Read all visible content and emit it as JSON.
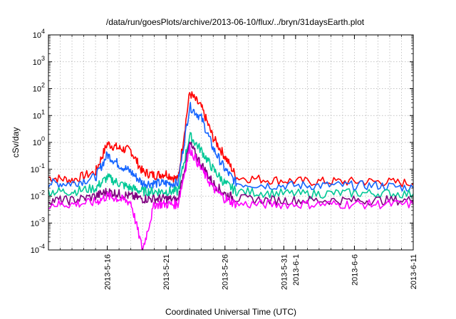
{
  "chart_data": {
    "type": "line",
    "title": "/data/run/goesPlots/archive/2013-06-10/flux/../bryn/31daysEarth.plot",
    "xlabel": "Coordinated Universal Time (UTC)",
    "ylabel": "cSv/day",
    "y_scale": "log",
    "ylim": [
      0.0001,
      10000
    ],
    "xlim": [
      "2013-05-11",
      "2013-06-11"
    ],
    "x_ticks": [
      "2013-5-16",
      "2013-5-21",
      "2013-5-26",
      "2013-5-31",
      "2013-6-1",
      "2013-6-6",
      "2013-6-11"
    ],
    "x_tick_dates": [
      "2013-05-16",
      "2013-05-21",
      "2013-05-26",
      "2013-05-31",
      "2013-06-01",
      "2013-06-06",
      "2013-06-11"
    ],
    "y_ticks": [
      {
        "mant": "10",
        "exp": "-4"
      },
      {
        "mant": "10",
        "exp": "-3"
      },
      {
        "mant": "10",
        "exp": "-2"
      },
      {
        "mant": "10",
        "exp": "-1"
      },
      {
        "mant": "10",
        "exp": "0"
      },
      {
        "mant": "10",
        "exp": "1"
      },
      {
        "mant": "10",
        "exp": "2"
      },
      {
        "mant": "10",
        "exp": "3"
      },
      {
        "mant": "10",
        "exp": "4"
      }
    ],
    "grid": true,
    "x": [
      "2013-05-11",
      "2013-05-13",
      "2013-05-15",
      "2013-05-16",
      "2013-05-17",
      "2013-05-18",
      "2013-05-19",
      "2013-05-20",
      "2013-05-21",
      "2013-05-22",
      "2013-05-23",
      "2013-05-24",
      "2013-05-25",
      "2013-05-26",
      "2013-05-27",
      "2013-05-30",
      "2013-06-02",
      "2013-06-05",
      "2013-06-08",
      "2013-06-11"
    ],
    "series": [
      {
        "color": "#ff0000",
        "values": [
          0.05,
          0.04,
          0.08,
          0.9,
          0.6,
          0.5,
          0.08,
          0.06,
          0.07,
          0.04,
          70,
          20,
          1.5,
          0.3,
          0.05,
          0.04,
          0.035,
          0.035,
          0.035,
          0.03
        ]
      },
      {
        "color": "#1565ff",
        "values": [
          0.03,
          0.03,
          0.05,
          0.35,
          0.15,
          0.08,
          0.03,
          0.03,
          0.03,
          0.03,
          22,
          8,
          0.6,
          0.1,
          0.03,
          0.025,
          0.025,
          0.025,
          0.025,
          0.02
        ]
      },
      {
        "color": "#00c896",
        "values": [
          0.015,
          0.015,
          0.02,
          0.05,
          0.03,
          0.02,
          0.015,
          0.015,
          0.015,
          0.015,
          1.8,
          0.5,
          0.1,
          0.03,
          0.015,
          0.013,
          0.012,
          0.013,
          0.013,
          0.012
        ]
      },
      {
        "color": "#800080",
        "values": [
          0.007,
          0.007,
          0.01,
          0.015,
          0.012,
          0.01,
          0.008,
          0.008,
          0.008,
          0.007,
          0.9,
          0.15,
          0.03,
          0.012,
          0.008,
          0.007,
          0.007,
          0.007,
          0.007,
          0.007
        ]
      },
      {
        "color": "#ff00ff",
        "values": [
          0.005,
          0.005,
          0.006,
          0.01,
          0.008,
          0.006,
          0.0001,
          0.005,
          0.005,
          0.005,
          0.6,
          0.1,
          0.02,
          0.008,
          0.005,
          0.005,
          0.005,
          0.005,
          0.005,
          0.005
        ]
      }
    ]
  }
}
